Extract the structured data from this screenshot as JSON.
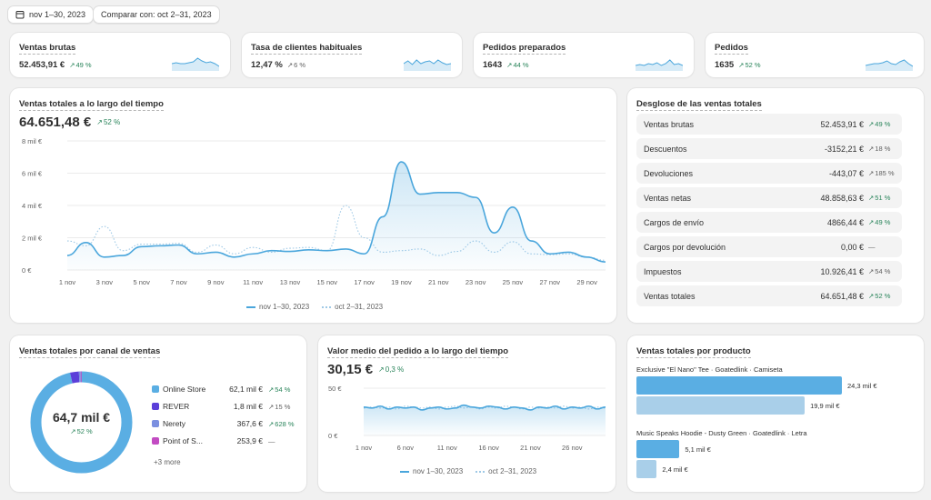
{
  "filters": {
    "date_range": "nov 1–30, 2023",
    "compare": "Comparar con: oct 2–31, 2023"
  },
  "kpis": [
    {
      "title": "Ventas brutas",
      "value": "52.453,91 €",
      "delta": "49 %",
      "trend": "up"
    },
    {
      "title": "Tasa de clientes habituales",
      "value": "12,47 %",
      "delta": "6 %",
      "trend": "neutral"
    },
    {
      "title": "Pedidos preparados",
      "value": "1643",
      "delta": "44 %",
      "trend": "up"
    },
    {
      "title": "Pedidos",
      "value": "1635",
      "delta": "52 %",
      "trend": "up"
    }
  ],
  "sales_over_time": {
    "title": "Ventas totales a lo largo del tiempo",
    "value": "64.651,48 €",
    "delta": "52 %",
    "legend": {
      "current": "nov 1–30, 2023",
      "previous": "oct 2–31, 2023"
    },
    "chart_data": {
      "type": "line",
      "y_ticks": [
        "8 mil €",
        "6 mil €",
        "4 mil €",
        "2 mil €",
        "0 €"
      ],
      "ylim": [
        0,
        8000
      ],
      "x_ticks": [
        "1 nov",
        "3 nov",
        "5 nov",
        "7 nov",
        "9 nov",
        "11 nov",
        "13 nov",
        "15 nov",
        "17 nov",
        "19 nov",
        "21 nov",
        "23 nov",
        "25 nov",
        "27 nov",
        "29 nov"
      ],
      "x": [
        1,
        2,
        3,
        4,
        5,
        6,
        7,
        8,
        9,
        10,
        11,
        12,
        13,
        14,
        15,
        16,
        17,
        18,
        19,
        20,
        21,
        22,
        23,
        24,
        25,
        26,
        27,
        28,
        29,
        30
      ],
      "series": [
        {
          "name": "nov 1–30, 2023",
          "values": [
            900,
            1700,
            800,
            900,
            1450,
            1500,
            1550,
            1000,
            1100,
            800,
            1000,
            1200,
            1150,
            1250,
            1200,
            1300,
            1000,
            3300,
            6700,
            4700,
            4800,
            4800,
            4500,
            2300,
            3900,
            1800,
            1000,
            1100,
            800,
            500
          ]
        },
        {
          "name": "oct 2–31, 2023",
          "values": [
            1800,
            1500,
            2700,
            1200,
            1600,
            1600,
            1650,
            1100,
            1550,
            1000,
            1400,
            1100,
            1350,
            1400,
            1200,
            4000,
            2000,
            1100,
            1200,
            1300,
            900,
            1150,
            1800,
            1100,
            1750,
            1000,
            950,
            1000,
            800,
            600
          ]
        }
      ]
    },
    "x_label_every": 2
  },
  "breakdown": {
    "title": "Desglose de las ventas totales",
    "rows": [
      {
        "label": "Ventas brutas",
        "value": "52.453,91 €",
        "delta": "49 %",
        "trend": "up"
      },
      {
        "label": "Descuentos",
        "value": "-3152,21 €",
        "delta": "18 %",
        "trend": "neutral"
      },
      {
        "label": "Devoluciones",
        "value": "-443,07 €",
        "delta": "185 %",
        "trend": "neutral"
      },
      {
        "label": "Ventas netas",
        "value": "48.858,63 €",
        "delta": "51 %",
        "trend": "up"
      },
      {
        "label": "Cargos de envío",
        "value": "4866,44 €",
        "delta": "49 %",
        "trend": "up"
      },
      {
        "label": "Cargos por devolución",
        "value": "0,00 €",
        "delta": "—",
        "trend": "none"
      },
      {
        "label": "Impuestos",
        "value": "10.926,41 €",
        "delta": "54 %",
        "trend": "neutral"
      },
      {
        "label": "Ventas totales",
        "value": "64.651,48 €",
        "delta": "52 %",
        "trend": "up"
      }
    ]
  },
  "channels": {
    "title": "Ventas totales por canal de ventas",
    "center_value": "64,7 mil €",
    "center_delta": "52 %",
    "more": "+3 more",
    "items": [
      {
        "label": "Online Store",
        "value": "62,1 mil €",
        "delta": "54 %",
        "trend": "up",
        "color": "#5aaee3"
      },
      {
        "label": "REVER",
        "value": "1,8 mil €",
        "delta": "15 %",
        "trend": "neutral",
        "color": "#5b3fd9"
      },
      {
        "label": "Nerety",
        "value": "367,6 €",
        "delta": "628 %",
        "trend": "up",
        "color": "#7b8fe0"
      },
      {
        "label": "Point of S...",
        "value": "253,9 €",
        "delta": "—",
        "trend": "none",
        "color": "#c24bc2"
      }
    ],
    "chart_data": {
      "type": "pie",
      "labels": [
        "Online Store",
        "REVER",
        "Nerety",
        "Point of S..."
      ],
      "values": [
        62100,
        1800,
        367.6,
        253.9
      ]
    }
  },
  "aov": {
    "title": "Valor medio del pedido a lo largo del tiempo",
    "value": "30,15 €",
    "delta": "0,3 %",
    "legend": {
      "current": "nov 1–30, 2023",
      "previous": "oct 2–31, 2023"
    },
    "chart_data": {
      "type": "line",
      "y_ticks": [
        "50 €",
        "0 €"
      ],
      "ylim": [
        0,
        50
      ],
      "x_ticks": [
        "1 nov",
        "6 nov",
        "11 nov",
        "16 nov",
        "21 nov",
        "26 nov"
      ],
      "x": [
        1,
        2,
        3,
        4,
        5,
        6,
        7,
        8,
        9,
        10,
        11,
        12,
        13,
        14,
        15,
        16,
        17,
        18,
        19,
        20,
        21,
        22,
        23,
        24,
        25,
        26,
        27,
        28,
        29,
        30
      ],
      "series": [
        {
          "name": "nov 1–30, 2023",
          "values": [
            30,
            29,
            31,
            28,
            30,
            29,
            30,
            27,
            29,
            30,
            28,
            29,
            32,
            30,
            29,
            31,
            30,
            28,
            30,
            29,
            27,
            30,
            29,
            31,
            28,
            30,
            29,
            31,
            28,
            30
          ]
        },
        {
          "name": "oct 2–31, 2023",
          "values": [
            29,
            30,
            29,
            30,
            28,
            31,
            30,
            29,
            30,
            28,
            30,
            31,
            29,
            30,
            28,
            30,
            29,
            31,
            30,
            28,
            30,
            29,
            30,
            29,
            31,
            29,
            30,
            28,
            30,
            29
          ]
        }
      ]
    },
    "x_label_every": 5
  },
  "products": {
    "title": "Ventas totales por producto",
    "items": [
      {
        "label": "Exclusive \"El Nano\" Tee · Goatedlink · Camiseta",
        "current": "24,3 mil €",
        "previous": "19,9 mil €",
        "current_value": 24300,
        "previous_value": 19900
      },
      {
        "label": "Music Speaks Hoodie - Dusty Green · Goatedlink · Letra",
        "current": "5,1 mil €",
        "previous": "2,4 mil €",
        "current_value": 5100,
        "previous_value": 2400
      }
    ],
    "chart_data": {
      "type": "bar",
      "categories": [
        "Exclusive \"El Nano\" Tee · Goatedlink · Camiseta",
        "Music Speaks Hoodie - Dusty Green · Goatedlink · Letra"
      ],
      "series": [
        {
          "name": "nov 1–30, 2023",
          "values": [
            24300,
            5100
          ]
        },
        {
          "name": "oct 2–31, 2023",
          "values": [
            19900,
            2400
          ]
        }
      ]
    }
  },
  "colors": {
    "accent": "#4aa6dc",
    "accent_light": "#a9cfe9",
    "positive": "#29845a"
  }
}
